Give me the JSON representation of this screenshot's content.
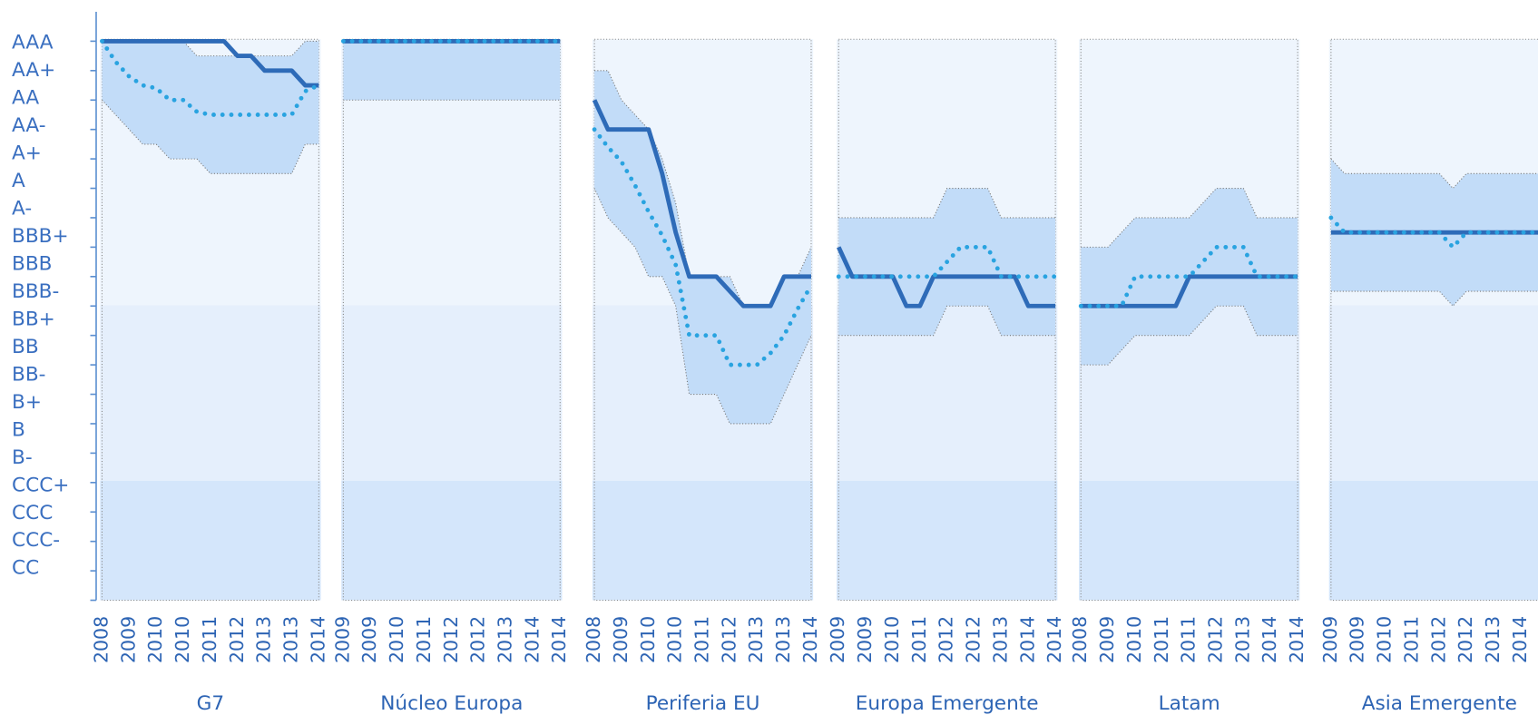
{
  "chart_data": [
    {
      "type": "line",
      "title": "G7",
      "categories": [
        "2008",
        null,
        "2009",
        null,
        "2010",
        null,
        "2010",
        null,
        "2011",
        null,
        "2012",
        null,
        "2013",
        null,
        "2013",
        null,
        "2014"
      ],
      "ylim": [
        1,
        21
      ],
      "yticks": [
        {
          "value": 20,
          "label": "AAA"
        },
        {
          "value": 19,
          "label": "AA+"
        },
        {
          "value": 18,
          "label": "AA"
        },
        {
          "value": 17,
          "label": "AA-"
        },
        {
          "value": 16,
          "label": "A+"
        },
        {
          "value": 15,
          "label": "A"
        },
        {
          "value": 14,
          "label": "A-"
        },
        {
          "value": 13,
          "label": "BBB+"
        },
        {
          "value": 12,
          "label": "BBB"
        },
        {
          "value": 11,
          "label": "BBB-"
        },
        {
          "value": 10,
          "label": "BB+"
        },
        {
          "value": 9,
          "label": "BB"
        },
        {
          "value": 8,
          "label": "BB-"
        },
        {
          "value": 7,
          "label": "B+"
        },
        {
          "value": 6,
          "label": "B"
        },
        {
          "value": 5,
          "label": "B-"
        },
        {
          "value": 4,
          "label": "CCC+"
        },
        {
          "value": 3,
          "label": "CCC"
        },
        {
          "value": 2,
          "label": "CCC-"
        },
        {
          "value": 1,
          "label": "CC"
        }
      ],
      "band": {
        "color": "#c2dcf8",
        "upper": [
          20,
          20,
          20,
          20,
          20,
          20,
          20,
          19.5,
          19.5,
          19.5,
          19.5,
          19.5,
          19.5,
          19.5,
          19.5,
          20,
          20
        ],
        "lower": [
          18,
          17.5,
          17,
          16.5,
          16.5,
          16,
          16,
          16,
          15.5,
          15.5,
          15.5,
          15.5,
          15.5,
          15.5,
          15.5,
          16.5,
          16.5
        ]
      },
      "series": [
        {
          "color": "#2e6bb8",
          "line_style": "solid",
          "values": [
            20,
            20,
            20,
            20,
            20,
            20,
            20,
            20,
            20,
            20,
            19.5,
            19.5,
            19,
            19,
            19,
            18.5,
            18.5
          ]
        },
        {
          "color": "#29a3e0",
          "line_style": "dotted",
          "values": [
            20,
            19.3,
            18.8,
            18.5,
            18.4,
            18,
            18,
            17.6,
            17.5,
            17.5,
            17.5,
            17.5,
            17.5,
            17.5,
            17.5,
            18.3,
            18.5
          ]
        }
      ]
    },
    {
      "type": "line",
      "title": "Núcleo Europa",
      "categories": [
        "2009",
        null,
        "2009",
        null,
        "2010",
        null,
        "2011",
        null,
        "2012",
        null,
        "2012",
        null,
        "2013",
        null,
        "2014",
        null,
        "2014"
      ],
      "ylim": [
        1,
        21
      ],
      "band": {
        "color": "#c2dcf8",
        "upper": [
          20,
          20,
          20,
          20,
          20,
          20,
          20,
          20,
          20,
          20,
          20,
          20,
          20,
          20,
          20,
          20,
          20
        ],
        "lower": [
          18,
          18,
          18,
          18,
          18,
          18,
          18,
          18,
          18,
          18,
          18,
          18,
          18,
          18,
          18,
          18,
          18
        ]
      },
      "series": [
        {
          "color": "#2e6bb8",
          "line_style": "solid",
          "values": [
            20,
            20,
            20,
            20,
            20,
            20,
            20,
            20,
            20,
            20,
            20,
            20,
            20,
            20,
            20,
            20,
            20
          ]
        },
        {
          "color": "#29a3e0",
          "line_style": "dotted",
          "values": [
            20,
            20,
            20,
            20,
            20,
            20,
            20,
            20,
            20,
            20,
            20,
            20,
            20,
            20,
            20,
            20,
            20
          ]
        }
      ]
    },
    {
      "type": "line",
      "title": "Periferia EU",
      "categories": [
        "2008",
        null,
        "2009",
        null,
        "2010",
        null,
        "2010",
        null,
        "2011",
        null,
        "2012",
        null,
        "2013",
        null,
        "2013",
        null,
        "2014"
      ],
      "ylim": [
        1,
        21
      ],
      "band": {
        "color": "#c2dcf8",
        "upper": [
          19,
          19,
          18,
          17.5,
          17,
          16,
          14.5,
          12,
          12,
          12,
          12,
          11,
          11,
          11,
          12,
          12,
          13
        ],
        "lower": [
          15,
          14,
          13.5,
          13,
          12,
          12,
          11,
          8,
          8,
          8,
          7,
          7,
          7,
          7,
          8,
          9,
          10
        ]
      },
      "series": [
        {
          "color": "#2e6bb8",
          "line_style": "solid",
          "values": [
            18,
            17,
            17,
            17,
            17,
            15.5,
            13.5,
            12,
            12,
            12,
            11.5,
            11,
            11,
            11,
            12,
            12,
            12
          ]
        },
        {
          "color": "#29a3e0",
          "line_style": "dotted",
          "values": [
            17,
            16.4,
            15.9,
            15.1,
            14.2,
            13.4,
            12.4,
            10,
            10,
            10,
            9,
            9,
            9,
            9.4,
            10,
            10.9,
            11.7
          ]
        }
      ]
    },
    {
      "type": "line",
      "title": "Europa Emergente",
      "categories": [
        "2009",
        null,
        "2009",
        null,
        "2010",
        null,
        "2011",
        null,
        "2012",
        null,
        "2012",
        null,
        "2013",
        null,
        "2014",
        null,
        "2014"
      ],
      "ylim": [
        1,
        21
      ],
      "band": {
        "color": "#c2dcf8",
        "upper": [
          14,
          14,
          14,
          14,
          14,
          14,
          14,
          14,
          15,
          15,
          15,
          15,
          14,
          14,
          14,
          14,
          14
        ],
        "lower": [
          10,
          10,
          10,
          10,
          10,
          10,
          10,
          10,
          11,
          11,
          11,
          11,
          10,
          10,
          10,
          10,
          10
        ]
      },
      "series": [
        {
          "color": "#2e6bb8",
          "line_style": "solid",
          "values": [
            13,
            12,
            12,
            12,
            12,
            11,
            11,
            12,
            12,
            12,
            12,
            12,
            12,
            12,
            11,
            11,
            11
          ]
        },
        {
          "color": "#29a3e0",
          "line_style": "dotted",
          "values": [
            12,
            12,
            12,
            12,
            12,
            12,
            12,
            12,
            12.5,
            13,
            13,
            13,
            12,
            12,
            12,
            12,
            12
          ]
        }
      ]
    },
    {
      "type": "line",
      "title": "Latam",
      "categories": [
        "2008",
        null,
        "2009",
        null,
        "2010",
        null,
        "2011",
        null,
        "2011",
        null,
        "2012",
        null,
        "2013",
        null,
        "2014",
        null,
        "2014"
      ],
      "ylim": [
        1,
        21
      ],
      "band": {
        "color": "#c2dcf8",
        "upper": [
          13,
          13,
          13,
          13.5,
          14,
          14,
          14,
          14,
          14,
          14.5,
          15,
          15,
          15,
          14,
          14,
          14,
          14
        ],
        "lower": [
          9,
          9,
          9,
          9.5,
          10,
          10,
          10,
          10,
          10,
          10.5,
          11,
          11,
          11,
          10,
          10,
          10,
          10
        ]
      },
      "series": [
        {
          "color": "#2e6bb8",
          "line_style": "solid",
          "values": [
            11,
            11,
            11,
            11,
            11,
            11,
            11,
            11,
            12,
            12,
            12,
            12,
            12,
            12,
            12,
            12,
            12
          ]
        },
        {
          "color": "#29a3e0",
          "line_style": "dotted",
          "values": [
            11,
            11,
            11,
            11,
            12,
            12,
            12,
            12,
            12,
            12.5,
            13,
            13,
            13,
            12,
            12,
            12,
            12
          ]
        }
      ]
    },
    {
      "type": "line",
      "title": "Asia Emergente",
      "categories": [
        "2009",
        null,
        "2009",
        null,
        "2010",
        null,
        "2011",
        null,
        "2012",
        null,
        "2012",
        null,
        "2013",
        null,
        "2014",
        null,
        "2014"
      ],
      "ylim": [
        1,
        21
      ],
      "band": {
        "color": "#c2dcf8",
        "upper": [
          16,
          15.5,
          15.5,
          15.5,
          15.5,
          15.5,
          15.5,
          15.5,
          15.5,
          15,
          15.5,
          15.5,
          15.5,
          15.5,
          15.5,
          15.5,
          15.5
        ],
        "lower": [
          11.5,
          11.5,
          11.5,
          11.5,
          11.5,
          11.5,
          11.5,
          11.5,
          11.5,
          11,
          11.5,
          11.5,
          11.5,
          11.5,
          11.5,
          11.5,
          11.5
        ]
      },
      "series": [
        {
          "color": "#2e6bb8",
          "line_style": "solid",
          "values": [
            13.5,
            13.5,
            13.5,
            13.5,
            13.5,
            13.5,
            13.5,
            13.5,
            13.5,
            13.5,
            13.5,
            13.5,
            13.5,
            13.5,
            13.5,
            13.5,
            13.5
          ]
        },
        {
          "color": "#29a3e0",
          "line_style": "dotted",
          "values": [
            14,
            13.5,
            13.5,
            13.5,
            13.5,
            13.5,
            13.5,
            13.5,
            13.5,
            13,
            13.5,
            13.5,
            13.5,
            13.5,
            13.5,
            13.5,
            13.5
          ]
        }
      ]
    }
  ]
}
